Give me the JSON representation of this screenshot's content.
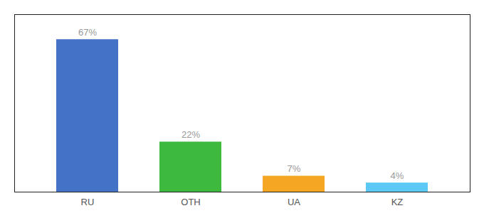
{
  "chart_data": {
    "type": "bar",
    "categories": [
      "RU",
      "OTH",
      "UA",
      "KZ"
    ],
    "values": [
      67,
      22,
      7,
      4
    ],
    "value_labels": [
      "67%",
      "22%",
      "7%",
      "4%"
    ],
    "colors": [
      "#4472c4",
      "#3dba3d",
      "#f5a623",
      "#5bc8f5"
    ],
    "ylim": [
      0,
      78
    ],
    "tick_labels": "x",
    "data_labels": true,
    "grid": false
  }
}
